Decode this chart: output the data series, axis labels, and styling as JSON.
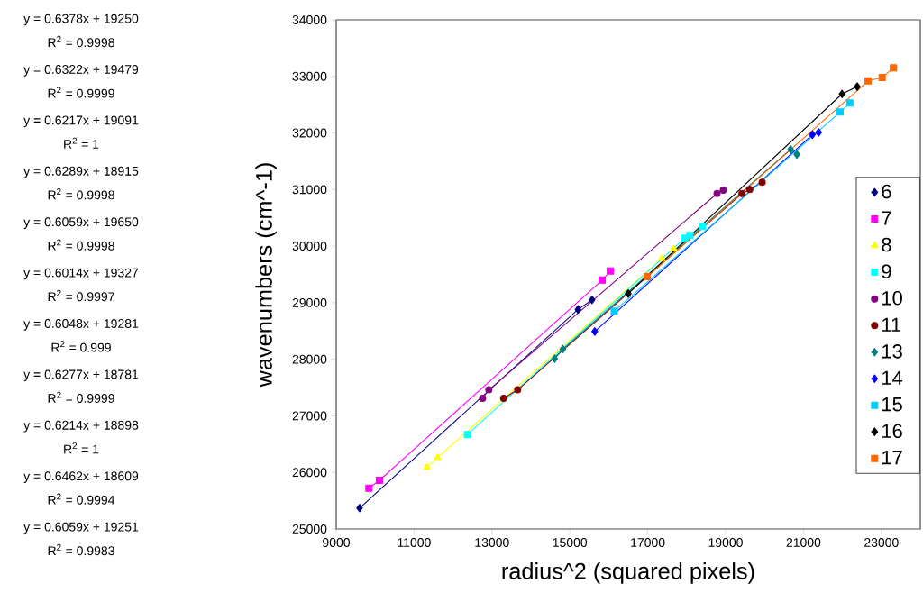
{
  "chart_data": {
    "type": "line",
    "xlabel": "radius^2 (squared pixels)",
    "ylabel": "wavenumbers (cm^-1)",
    "xlim": [
      9000,
      24000
    ],
    "xticks": [
      9000,
      11000,
      13000,
      15000,
      17000,
      19000,
      21000,
      23000
    ],
    "ylim": [
      25000,
      34000
    ],
    "yticks": [
      25000,
      26000,
      27000,
      28000,
      29000,
      30000,
      31000,
      32000,
      33000,
      34000
    ],
    "grid": false,
    "legend": "right",
    "line_style": "solid",
    "series": [
      {
        "name": "6",
        "color": "#000080",
        "marker": "diamond",
        "x": [
          9600,
          15210,
          15570
        ],
        "values": [
          25370,
          28880,
          29050
        ]
      },
      {
        "name": "7",
        "color": "#ff00ff",
        "marker": "square",
        "x": [
          9840,
          10110,
          15830,
          16040
        ],
        "values": [
          25720,
          25860,
          29400,
          29560
        ]
      },
      {
        "name": "8",
        "color": "#ffff00",
        "marker": "triangle",
        "x": [
          11330,
          11600,
          17360,
          17670
        ],
        "values": [
          26090,
          26260,
          29780,
          29950
        ]
      },
      {
        "name": "9",
        "color": "#00ffff",
        "marker": "square",
        "x": [
          12370,
          17950,
          18080,
          18400
        ],
        "values": [
          26670,
          30140,
          30190,
          30350
        ]
      },
      {
        "name": "10",
        "color": "#800080",
        "marker": "circle",
        "x": [
          12760,
          12920,
          18780,
          18940
        ],
        "values": [
          27310,
          27460,
          30930,
          30990
        ]
      },
      {
        "name": "11",
        "color": "#800000",
        "marker": "circle",
        "x": [
          13300,
          13660,
          19420,
          19620,
          19940
        ],
        "values": [
          27310,
          27460,
          30930,
          31000,
          31130
        ]
      },
      {
        "name": "13",
        "color": "#008080",
        "marker": "diamond",
        "x": [
          14610,
          14820,
          20670,
          20830
        ],
        "values": [
          28010,
          28180,
          31710,
          31620
        ]
      },
      {
        "name": "14",
        "color": "#0000ff",
        "marker": "diamond",
        "x": [
          15640,
          21230,
          21390
        ],
        "values": [
          28490,
          31970,
          32010
        ]
      },
      {
        "name": "15",
        "color": "#00ccff",
        "marker": "square",
        "x": [
          16140,
          21940,
          22190
        ],
        "values": [
          28850,
          32370,
          32530
        ]
      },
      {
        "name": "16",
        "color": "#000000",
        "marker": "diamond",
        "x": [
          16500,
          21990,
          22380
        ],
        "values": [
          29160,
          32690,
          32820
        ]
      },
      {
        "name": "17",
        "color": "#ff6600",
        "marker": "square",
        "x": [
          16990,
          22660,
          23020,
          23310
        ],
        "values": [
          29460,
          32920,
          32980,
          33150
        ]
      }
    ],
    "annotations": [
      "y = 0.6378x + 19250",
      "R$^{2}$ = 0.9998",
      "y = 0.6322x + 19479",
      "R$^{2}$ = 0.9999",
      "y = 0.6217x + 19091",
      "R$^{2}$ = 1",
      "y = 0.6289x + 18915",
      "R$^{2}$ = 0.9998",
      "y = 0.6059x + 19650",
      "R$^{2}$ = 0.9998",
      "y = 0.6014x + 19327",
      "R$^{2}$ = 0.9997",
      "y = 0.6048x + 19281",
      "R$^{2}$ = 0.999",
      "y = 0.6277x + 18781",
      "R$^{2}$ = 0.9999",
      "y = 0.6214x + 18898",
      "R$^{2}$ = 1",
      "y = 0.6462x + 18609",
      "R$^{2}$ = 0.9994",
      "y = 0.6059x + 19251",
      "R$^{2}$ = 0.9983"
    ]
  }
}
